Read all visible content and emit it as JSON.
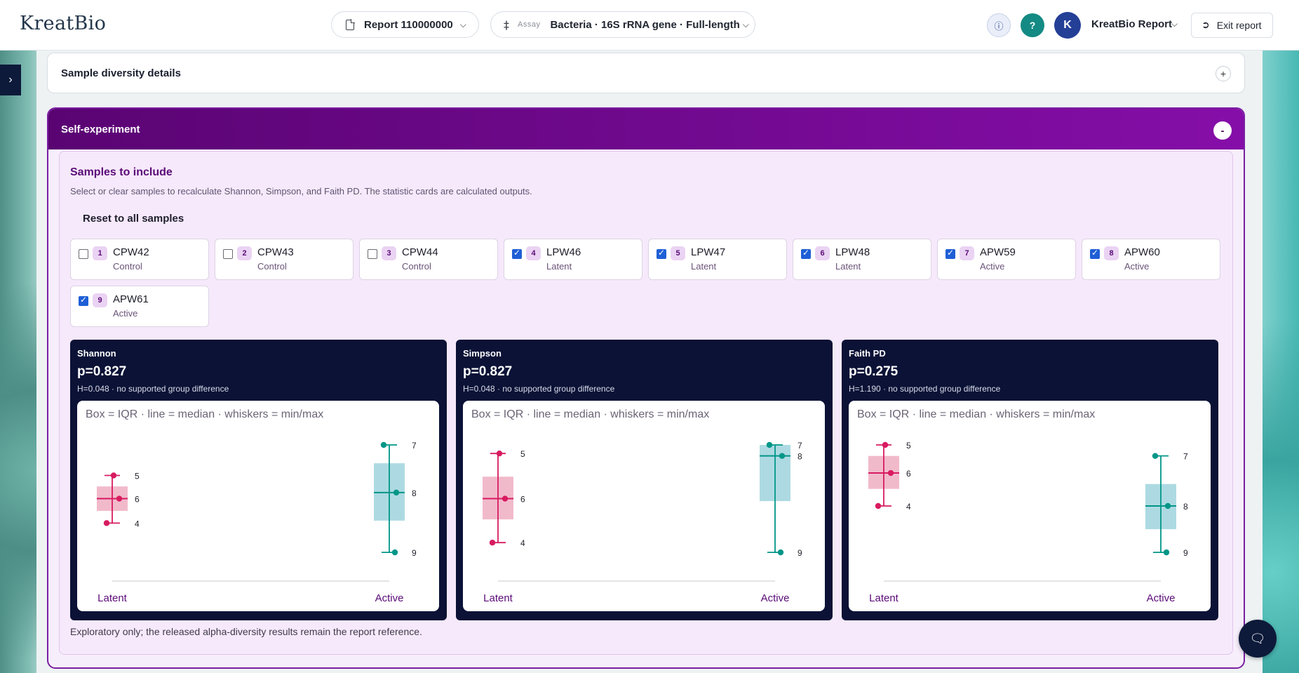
{
  "header": {
    "logo": "KreatBio",
    "report_label": "Report 110000000",
    "assay_tag": "Assay",
    "assay_value": "Bacteria · 16S rRNA gene · Full-length",
    "user_initial": "K",
    "user_name": "KreatBio Report",
    "exit_label": "Exit report"
  },
  "sections": {
    "diversity_title": "Sample diversity details",
    "diversity_toggle": "+",
    "self_title": "Self-experiment",
    "self_toggle": "-"
  },
  "samples_panel": {
    "title": "Samples to include",
    "description": "Select or clear samples to recalculate Shannon, Simpson, and Faith PD. The statistic cards are calculated outputs.",
    "reset_label": "Reset to all samples",
    "samples": [
      {
        "num": "1",
        "name": "CPW42",
        "group": "Control",
        "checked": false
      },
      {
        "num": "2",
        "name": "CPW43",
        "group": "Control",
        "checked": false
      },
      {
        "num": "3",
        "name": "CPW44",
        "group": "Control",
        "checked": false
      },
      {
        "num": "4",
        "name": "LPW46",
        "group": "Latent",
        "checked": true
      },
      {
        "num": "5",
        "name": "LPW47",
        "group": "Latent",
        "checked": true
      },
      {
        "num": "6",
        "name": "LPW48",
        "group": "Latent",
        "checked": true
      },
      {
        "num": "7",
        "name": "APW59",
        "group": "Active",
        "checked": true
      },
      {
        "num": "8",
        "name": "APW60",
        "group": "Active",
        "checked": true
      },
      {
        "num": "9",
        "name": "APW61",
        "group": "Active",
        "checked": true
      }
    ],
    "footnote": "Exploratory only; the released alpha-diversity results remain the report reference."
  },
  "colors": {
    "latent": "#d81b60",
    "latent_box": "#f0b6c8",
    "active": "#009688",
    "active_box": "#a9d8e0",
    "accent": "#7b1fa2"
  },
  "stats": [
    {
      "title": "Shannon",
      "p": "p=0.827",
      "sub": "H=0.048 · no supported group difference",
      "note": "Box = IQR · line = median · whiskers = min/max"
    },
    {
      "title": "Simpson",
      "p": "p=0.827",
      "sub": "H=0.048 · no supported group difference",
      "note": "Box = IQR · line = median · whiskers = min/max"
    },
    {
      "title": "Faith PD",
      "p": "p=0.275",
      "sub": "H=1.190 · no supported group difference",
      "note": "Box = IQR · line = median · whiskers = min/max"
    }
  ],
  "chart_data": [
    {
      "type": "box",
      "title": "Shannon",
      "categories": [
        "Latent",
        "Active"
      ],
      "ylim": [
        0,
        1
      ],
      "series": [
        {
          "name": "Latent",
          "min": 0.36,
          "q1": 0.46,
          "median": 0.56,
          "q3": 0.66,
          "max": 0.75,
          "points": [
            {
              "label": "5",
              "value": 0.75
            },
            {
              "label": "6",
              "value": 0.56
            },
            {
              "label": "4",
              "value": 0.36
            }
          ]
        },
        {
          "name": "Active",
          "min": 0.12,
          "q1": 0.38,
          "median": 0.61,
          "q3": 0.85,
          "max": 1.0,
          "points": [
            {
              "label": "7",
              "value": 1.0
            },
            {
              "label": "8",
              "value": 0.61
            },
            {
              "label": "9",
              "value": 0.12
            }
          ]
        }
      ]
    },
    {
      "type": "box",
      "title": "Simpson",
      "categories": [
        "Latent",
        "Active"
      ],
      "ylim": [
        0,
        1
      ],
      "series": [
        {
          "name": "Latent",
          "min": 0.2,
          "q1": 0.39,
          "median": 0.56,
          "q3": 0.74,
          "max": 0.93,
          "points": [
            {
              "label": "5",
              "value": 0.93
            },
            {
              "label": "6",
              "value": 0.56
            },
            {
              "label": "4",
              "value": 0.2
            }
          ]
        },
        {
          "name": "Active",
          "min": 0.12,
          "q1": 0.54,
          "median": 0.91,
          "q3": 1.0,
          "max": 1.0,
          "points": [
            {
              "label": "7",
              "value": 1.0
            },
            {
              "label": "8",
              "value": 0.91
            },
            {
              "label": "9",
              "value": 0.12
            }
          ]
        }
      ]
    },
    {
      "type": "box",
      "title": "Faith PD",
      "categories": [
        "Latent",
        "Active"
      ],
      "ylim": [
        0,
        1
      ],
      "series": [
        {
          "name": "Latent",
          "min": 0.5,
          "q1": 0.64,
          "median": 0.77,
          "q3": 0.91,
          "max": 1.0,
          "points": [
            {
              "label": "5",
              "value": 1.0
            },
            {
              "label": "6",
              "value": 0.77
            },
            {
              "label": "4",
              "value": 0.5
            }
          ]
        },
        {
          "name": "Active",
          "min": 0.12,
          "q1": 0.31,
          "median": 0.5,
          "q3": 0.68,
          "max": 0.91,
          "points": [
            {
              "label": "7",
              "value": 0.91
            },
            {
              "label": "8",
              "value": 0.5
            },
            {
              "label": "9",
              "value": 0.12
            }
          ]
        }
      ]
    }
  ]
}
